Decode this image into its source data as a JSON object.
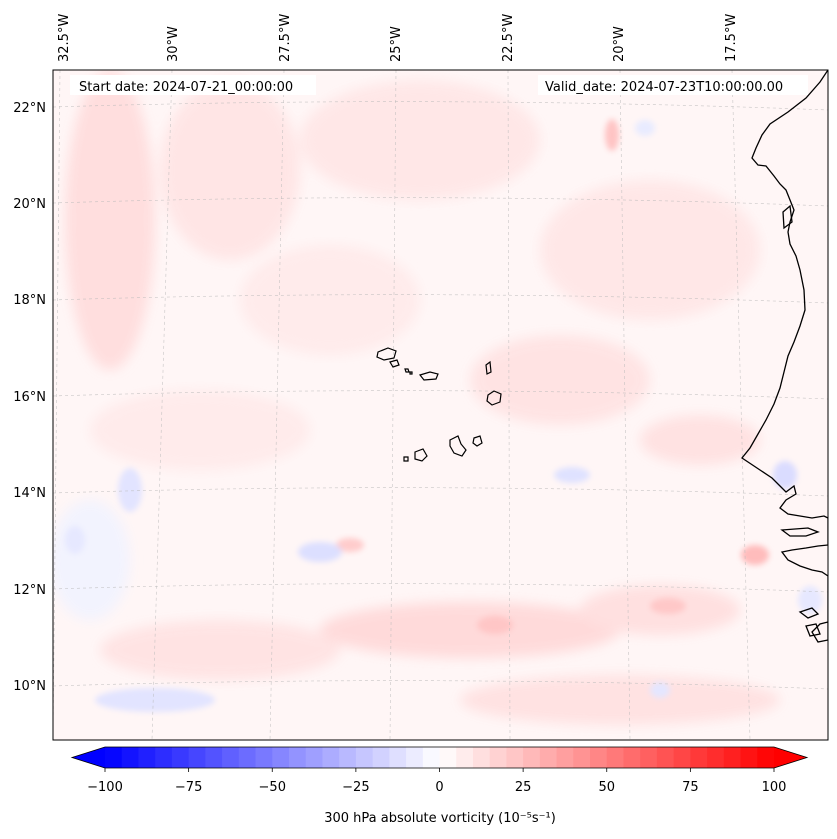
{
  "map": {
    "start_date": "Start date: 2024-07-21_00:00:00",
    "valid_date": "Valid_date: 2024-07-23T10:00:00.00",
    "lon_labels": [
      "32.5°W",
      "30°W",
      "27.5°W",
      "25°W",
      "22.5°W",
      "20°W",
      "17.5°W"
    ],
    "lat_labels": [
      "22°N",
      "20°N",
      "18°N",
      "16°N",
      "14°N",
      "12°N",
      "10°N"
    ]
  },
  "colorbar": {
    "label": "300 hPa absolute vorticity (10⁻⁵s⁻¹)",
    "ticks": [
      "−100",
      "−75",
      "−50",
      "−25",
      "0",
      "25",
      "50",
      "75",
      "100"
    ],
    "min": -100,
    "max": 100,
    "neg_color": "#0000ff",
    "pos_color": "#ff0000"
  }
}
